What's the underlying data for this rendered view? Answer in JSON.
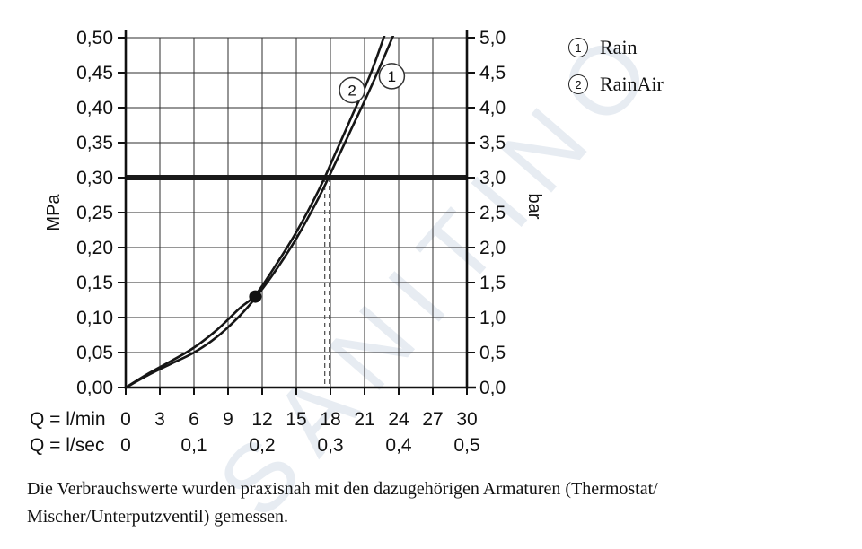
{
  "watermark": "SANITINO",
  "legend": {
    "items": [
      {
        "num": "1",
        "label": "Rain"
      },
      {
        "num": "2",
        "label": "RainAir"
      }
    ]
  },
  "axis": {
    "left_unit": "MPa",
    "right_unit": "bar",
    "x_row1_label": "Q = l/min",
    "x_row2_label": "Q = l/sec"
  },
  "footnote": {
    "line1": "Die Verbrauchswerte wurden praxisnah mit den dazugehörigen Armaturen (Thermostat/",
    "line2": "Mischer/Unterputzventil) gemessen."
  },
  "chart_data": {
    "type": "line",
    "title": "",
    "xlabel": "Q = l/min",
    "ylabel_left": "MPa",
    "ylabel_right": "bar",
    "grid": true,
    "x_axis": {
      "min": 0,
      "max": 30,
      "ticks": [
        0,
        3,
        6,
        9,
        12,
        15,
        18,
        21,
        24,
        27,
        30
      ],
      "tick_labels": [
        "0",
        "3",
        "6",
        "9",
        "12",
        "15",
        "18",
        "21",
        "24",
        "27",
        "30"
      ]
    },
    "x_axis2": {
      "label": "Q = l/sec",
      "tick_positions_lmin": [
        0,
        6,
        12,
        18,
        24,
        30
      ],
      "tick_labels": [
        "0",
        "0,1",
        "0,2",
        "0,3",
        "0,4",
        "0,5"
      ]
    },
    "y_axis_left": {
      "label": "MPa",
      "min": 0,
      "max": 0.5,
      "tick_labels": [
        "0,00",
        "0,05",
        "0,10",
        "0,15",
        "0,20",
        "0,25",
        "0,30",
        "0,35",
        "0,40",
        "0,45",
        "0,50"
      ]
    },
    "y_axis_right": {
      "label": "bar",
      "min": 0,
      "max": 5,
      "tick_labels": [
        "0,0",
        "0,5",
        "1,0",
        "1,5",
        "2,0",
        "2,5",
        "3,0",
        "3,5",
        "4,0",
        "4,5",
        "5,0"
      ]
    },
    "reference_line": {
      "y_mpa": 0.3,
      "y_bar": 3.0,
      "color": "#1a1a1a"
    },
    "dashed_lines_x": [
      17.5,
      17.9
    ],
    "marker_point": {
      "x": 11.4,
      "y": 0.13
    },
    "series": [
      {
        "name": "Rain",
        "number": "1",
        "label_pos": {
          "x": 23.4,
          "y": 0.445
        },
        "points": [
          [
            0,
            0
          ],
          [
            2,
            0.018
          ],
          [
            4,
            0.034
          ],
          [
            6,
            0.05
          ],
          [
            8,
            0.072
          ],
          [
            10,
            0.102
          ],
          [
            11.4,
            0.128
          ],
          [
            13,
            0.163
          ],
          [
            15,
            0.213
          ],
          [
            17,
            0.272
          ],
          [
            18.5,
            0.323
          ],
          [
            20,
            0.375
          ],
          [
            21.5,
            0.427
          ],
          [
            23,
            0.483
          ],
          [
            23.7,
            0.51
          ]
        ]
      },
      {
        "name": "RainAir",
        "number": "2",
        "label_pos": {
          "x": 19.9,
          "y": 0.425
        },
        "points": [
          [
            0,
            0
          ],
          [
            2,
            0.02
          ],
          [
            4,
            0.038
          ],
          [
            6,
            0.057
          ],
          [
            8,
            0.082
          ],
          [
            10,
            0.113
          ],
          [
            11.4,
            0.132
          ],
          [
            13,
            0.17
          ],
          [
            15,
            0.222
          ],
          [
            17,
            0.283
          ],
          [
            18.5,
            0.337
          ],
          [
            20,
            0.392
          ],
          [
            21.5,
            0.447
          ],
          [
            22.9,
            0.51
          ]
        ]
      }
    ]
  }
}
